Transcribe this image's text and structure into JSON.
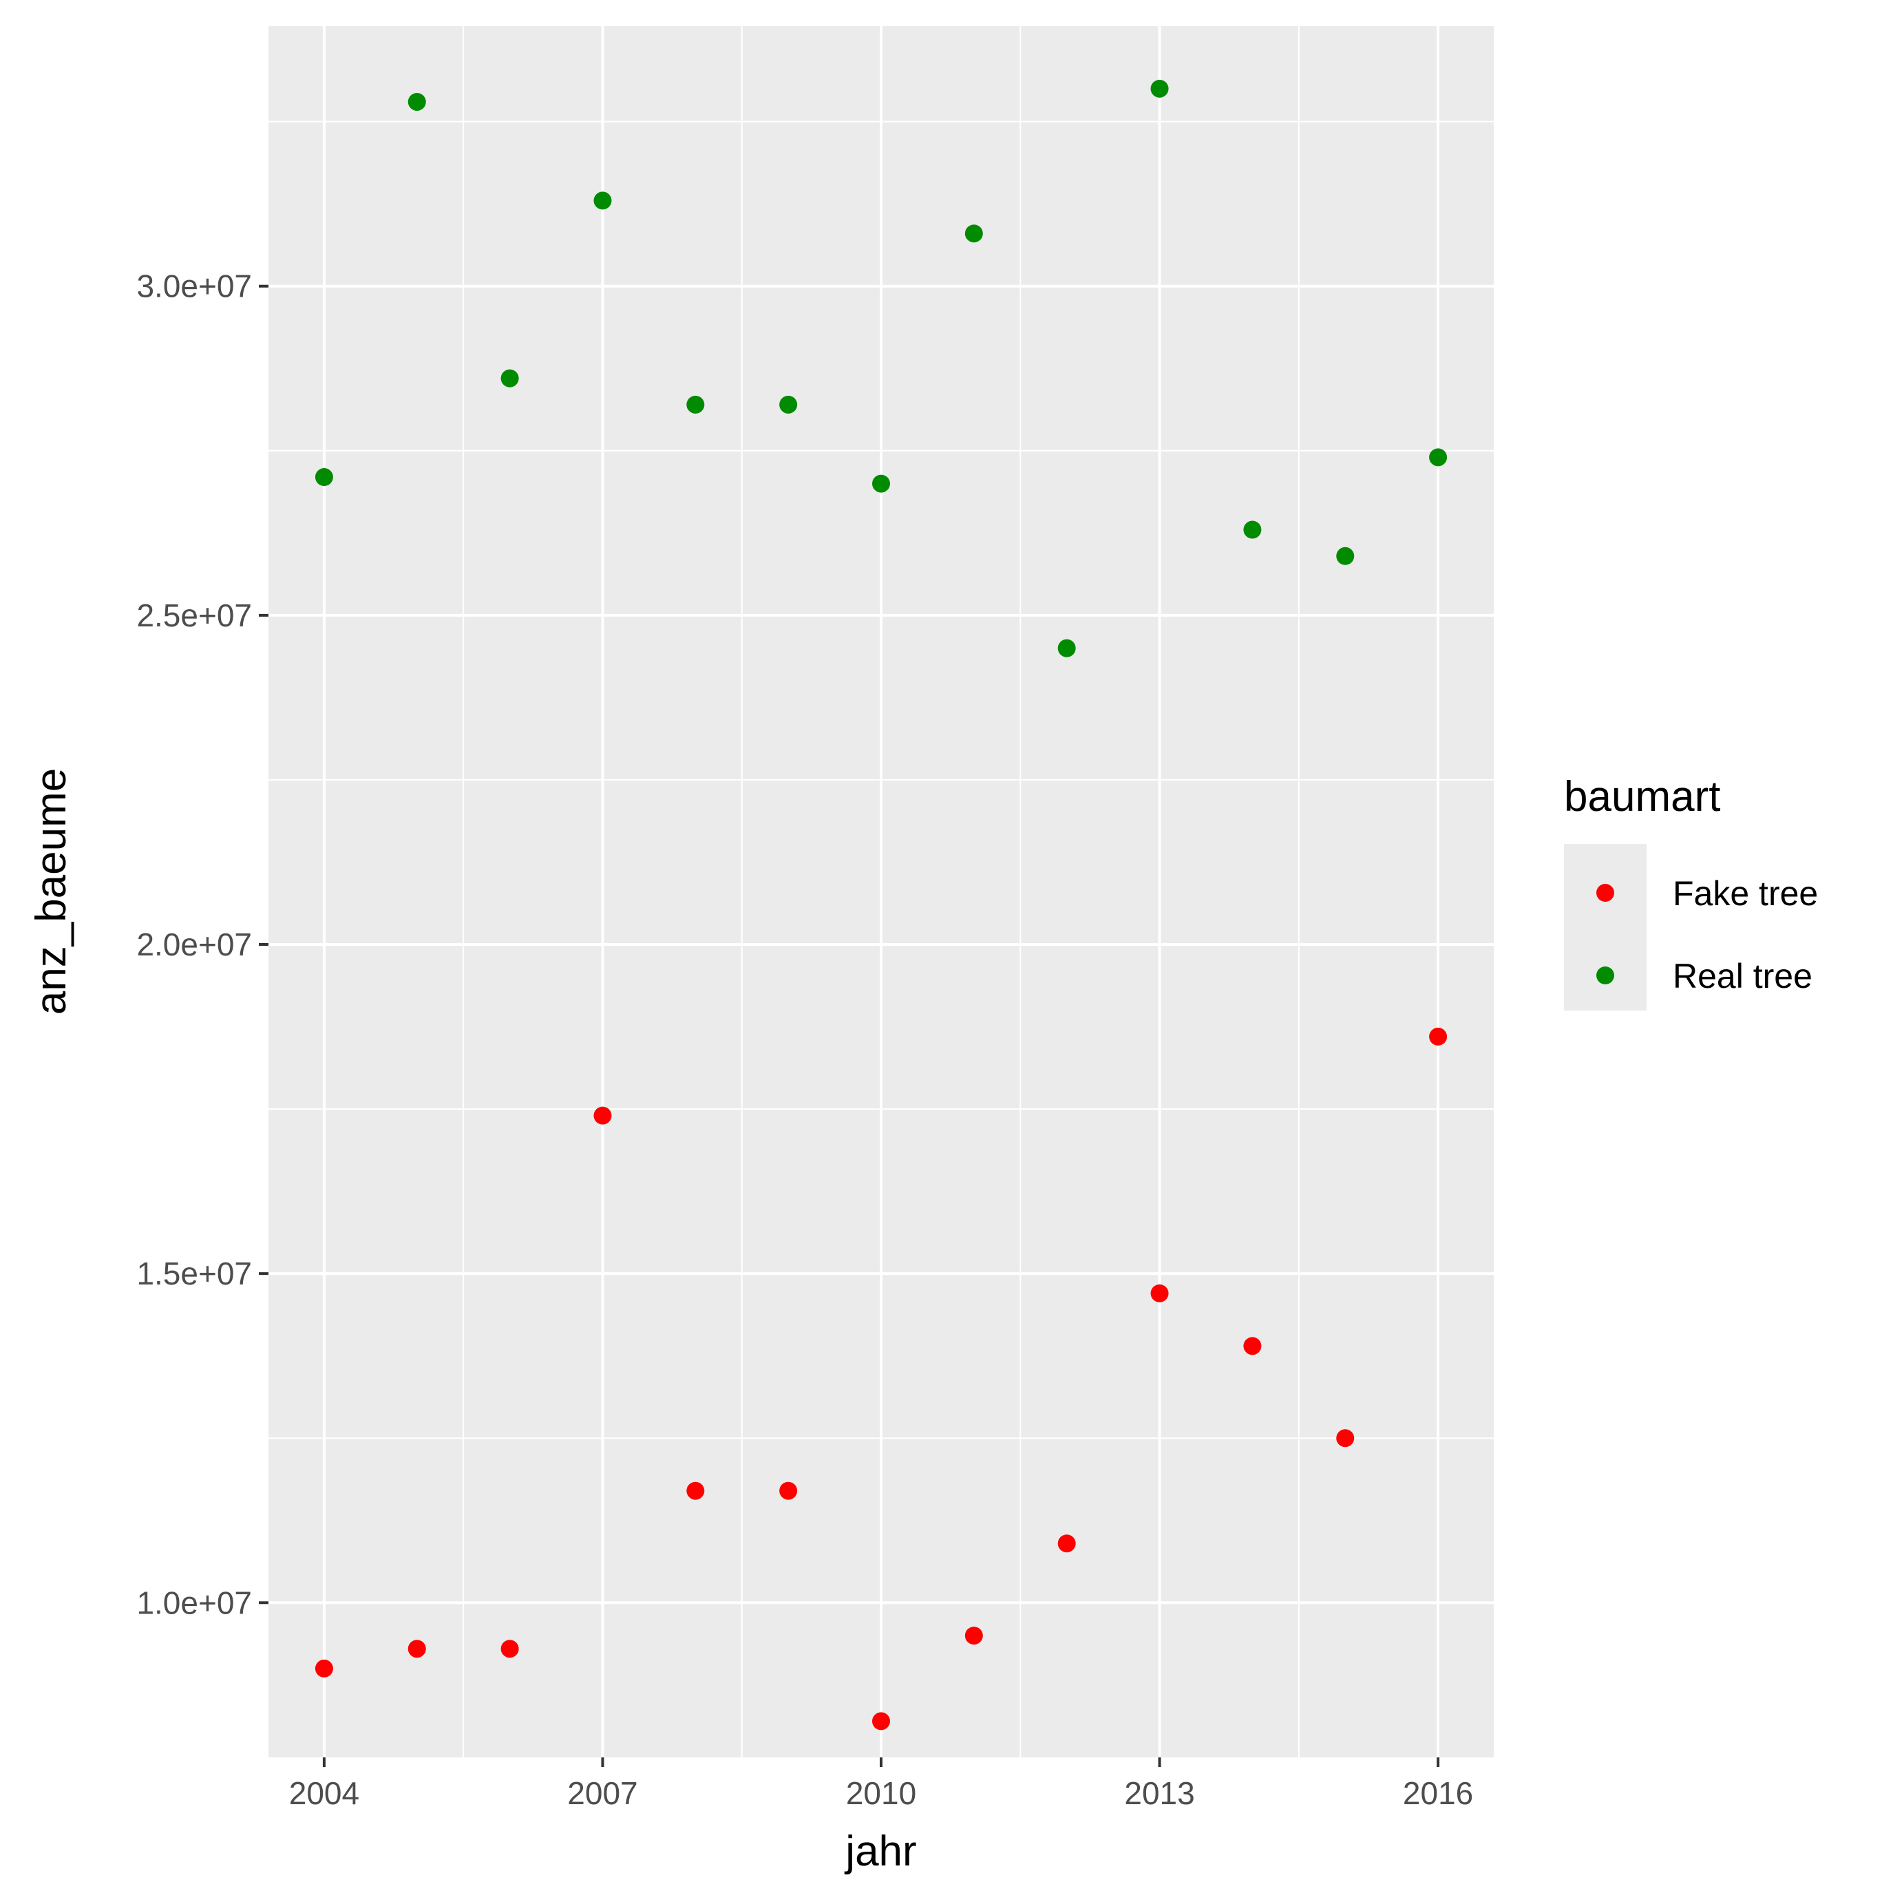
{
  "chart_data": {
    "type": "scatter",
    "xlabel": "jahr",
    "ylabel": "anz_baeume",
    "xlim": [
      2003.4,
      2016.6
    ],
    "ylim": [
      7650000,
      33950000
    ],
    "x_ticks": [
      2004,
      2007,
      2010,
      2013,
      2016
    ],
    "x_tick_labels": [
      "2004",
      "2007",
      "2010",
      "2013",
      "2016"
    ],
    "y_ticks": [
      10000000,
      15000000,
      20000000,
      25000000,
      30000000
    ],
    "y_tick_labels": [
      "1.0e+07",
      "1.5e+07",
      "2.0e+07",
      "2.5e+07",
      "3.0e+07"
    ],
    "grid": true,
    "background": "#ebebeb",
    "legend": {
      "title": "baumart",
      "position": "right"
    },
    "series": [
      {
        "name": "Fake tree",
        "color": "#ff0000",
        "x": [
          2004,
          2005,
          2006,
          2007,
          2008,
          2009,
          2010,
          2011,
          2012,
          2013,
          2014,
          2015,
          2016
        ],
        "y": [
          9000000,
          9300000,
          9300000,
          17400000,
          11700000,
          11700000,
          8200000,
          9500000,
          10900000,
          14700000,
          13900000,
          12500000,
          18600000
        ]
      },
      {
        "name": "Real tree",
        "color": "#008b00",
        "x": [
          2004,
          2005,
          2006,
          2007,
          2008,
          2009,
          2010,
          2011,
          2012,
          2013,
          2014,
          2015,
          2016
        ],
        "y": [
          27100000,
          32800000,
          28600000,
          31300000,
          28200000,
          28200000,
          27000000,
          30800000,
          24500000,
          33000000,
          26300000,
          25900000,
          27400000
        ]
      }
    ]
  }
}
